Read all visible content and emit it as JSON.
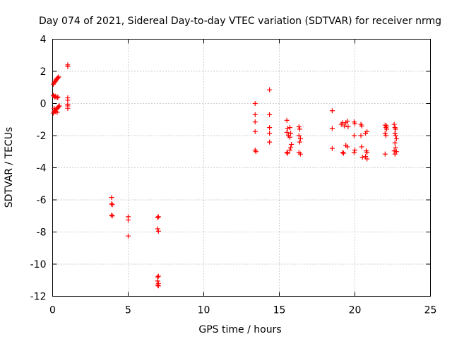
{
  "chart_data": {
    "type": "scatter",
    "title": "Day 074 of 2021, Sidereal Day-to-day VTEC variation (SDTVAR) for receiver nrmg",
    "xlabel": "GPS time / hours",
    "ylabel": "SDTVAR / TECUs",
    "xlim": [
      0,
      25
    ],
    "ylim": [
      -12,
      4
    ],
    "xticks": [
      0,
      5,
      10,
      15,
      20,
      25
    ],
    "yticks": [
      -12,
      -10,
      -8,
      -6,
      -4,
      -2,
      0,
      2,
      4
    ],
    "xtick_labels": [
      "0",
      "5",
      "10",
      "15",
      "20",
      "25"
    ],
    "ytick_labels": [
      "-12",
      "-10",
      "-8",
      "-6",
      "-4",
      "-2",
      "0",
      "2",
      "4"
    ],
    "grid": true,
    "marker": "+",
    "color": "#ff0000",
    "series": [
      {
        "name": "SDTVAR",
        "points": [
          [
            0.05,
            1.2
          ],
          [
            0.1,
            1.3
          ],
          [
            0.15,
            1.35
          ],
          [
            0.2,
            1.4
          ],
          [
            0.25,
            1.5
          ],
          [
            0.3,
            1.55
          ],
          [
            0.35,
            1.6
          ],
          [
            0.4,
            1.65
          ],
          [
            0.05,
            0.5
          ],
          [
            0.1,
            0.45
          ],
          [
            0.15,
            0.4
          ],
          [
            0.2,
            0.45
          ],
          [
            0.3,
            0.35
          ],
          [
            0.35,
            0.4
          ],
          [
            0.05,
            -0.6
          ],
          [
            0.1,
            -0.5
          ],
          [
            0.15,
            -0.45
          ],
          [
            0.2,
            -0.4
          ],
          [
            0.25,
            -0.35
          ],
          [
            0.3,
            -0.3
          ],
          [
            0.35,
            -0.25
          ],
          [
            0.4,
            -0.2
          ],
          [
            0.45,
            -0.15
          ],
          [
            0.1,
            -0.3
          ],
          [
            0.2,
            -0.5
          ],
          [
            0.3,
            -0.55
          ],
          [
            1.0,
            2.3
          ],
          [
            1.0,
            2.4
          ],
          [
            1.0,
            0.35
          ],
          [
            1.0,
            0.2
          ],
          [
            1.0,
            -0.05
          ],
          [
            1.0,
            -0.15
          ],
          [
            1.0,
            -0.3
          ],
          [
            3.9,
            -5.85
          ],
          [
            3.9,
            -6.25
          ],
          [
            3.95,
            -6.3
          ],
          [
            3.9,
            -6.95
          ],
          [
            3.95,
            -7.0
          ],
          [
            5.0,
            -7.05
          ],
          [
            5.0,
            -7.25
          ],
          [
            5.0,
            -8.25
          ],
          [
            6.95,
            -7.1
          ],
          [
            7.0,
            -7.05
          ],
          [
            6.95,
            -7.8
          ],
          [
            7.0,
            -7.95
          ],
          [
            6.95,
            -10.8
          ],
          [
            7.0,
            -10.75
          ],
          [
            6.95,
            -11.05
          ],
          [
            7.0,
            -11.2
          ],
          [
            6.95,
            -11.3
          ],
          [
            7.0,
            -11.35
          ],
          [
            13.4,
            0.0
          ],
          [
            13.4,
            -0.7
          ],
          [
            13.4,
            -1.15
          ],
          [
            13.4,
            -1.75
          ],
          [
            13.4,
            -2.9
          ],
          [
            13.45,
            -3.0
          ],
          [
            14.35,
            0.85
          ],
          [
            14.35,
            -0.7
          ],
          [
            14.35,
            -1.5
          ],
          [
            14.35,
            -1.85
          ],
          [
            14.35,
            -2.4
          ],
          [
            15.5,
            -1.05
          ],
          [
            15.55,
            -1.55
          ],
          [
            15.5,
            -1.8
          ],
          [
            15.6,
            -2.0
          ],
          [
            15.5,
            -3.05
          ],
          [
            15.55,
            -3.1
          ],
          [
            15.7,
            -1.5
          ],
          [
            15.75,
            -1.85
          ],
          [
            15.7,
            -2.1
          ],
          [
            15.8,
            -2.55
          ],
          [
            15.75,
            -2.75
          ],
          [
            15.7,
            -2.9
          ],
          [
            16.3,
            -1.45
          ],
          [
            16.35,
            -1.6
          ],
          [
            16.3,
            -2.0
          ],
          [
            16.4,
            -2.2
          ],
          [
            16.35,
            -2.4
          ],
          [
            16.3,
            -3.05
          ],
          [
            16.4,
            -3.15
          ],
          [
            18.5,
            -0.45
          ],
          [
            18.5,
            -1.55
          ],
          [
            18.5,
            -2.8
          ],
          [
            19.1,
            -1.3
          ],
          [
            19.2,
            -1.2
          ],
          [
            19.3,
            -1.4
          ],
          [
            19.4,
            -1.2
          ],
          [
            19.5,
            -1.1
          ],
          [
            19.55,
            -1.45
          ],
          [
            19.4,
            -2.6
          ],
          [
            19.5,
            -2.7
          ],
          [
            19.2,
            -3.05
          ],
          [
            19.25,
            -3.1
          ],
          [
            19.95,
            -1.15
          ],
          [
            20.0,
            -1.25
          ],
          [
            19.95,
            -2.0
          ],
          [
            20.0,
            -2.9
          ],
          [
            19.95,
            -3.05
          ],
          [
            20.4,
            -1.3
          ],
          [
            20.45,
            -1.4
          ],
          [
            20.4,
            -2.0
          ],
          [
            20.45,
            -2.7
          ],
          [
            20.5,
            -3.35
          ],
          [
            20.7,
            -1.85
          ],
          [
            20.8,
            -1.75
          ],
          [
            20.75,
            -2.95
          ],
          [
            20.8,
            -3.05
          ],
          [
            20.7,
            -3.3
          ],
          [
            20.8,
            -3.45
          ],
          [
            22.0,
            -1.35
          ],
          [
            22.05,
            -1.5
          ],
          [
            22.1,
            -1.6
          ],
          [
            22.0,
            -1.85
          ],
          [
            22.05,
            -2.0
          ],
          [
            22.1,
            -1.4
          ],
          [
            22.0,
            -3.15
          ],
          [
            22.6,
            -1.3
          ],
          [
            22.65,
            -1.5
          ],
          [
            22.7,
            -1.6
          ],
          [
            22.65,
            -1.85
          ],
          [
            22.7,
            -2.0
          ],
          [
            22.75,
            -2.2
          ],
          [
            22.65,
            -2.45
          ],
          [
            22.7,
            -2.75
          ],
          [
            22.6,
            -2.95
          ],
          [
            22.75,
            -3.0
          ],
          [
            22.65,
            -3.15
          ]
        ]
      }
    ]
  }
}
